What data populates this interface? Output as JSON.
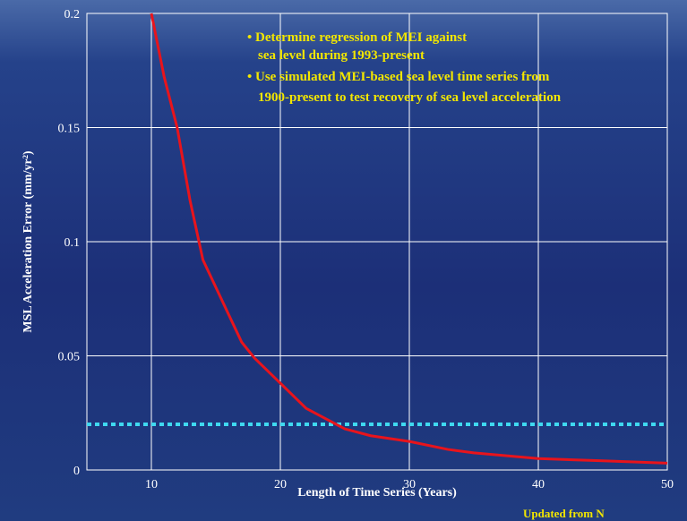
{
  "chart_data": {
    "type": "line",
    "xlabel": "Length of Time Series (Years)",
    "ylabel": "MSL Acceleration Error (mm/yr²)",
    "annotations": [
      "• Determine regression of MEI against",
      "sea level during 1993-present",
      "• Use simulated MEI-based sea level time series from",
      "1900-present to test recovery of sea level acceleration"
    ],
    "footnote": "Updated from N",
    "x": [
      10,
      11,
      12,
      13,
      14,
      15,
      16,
      17,
      18,
      20,
      22,
      24,
      25,
      27,
      30,
      33,
      35,
      40,
      45,
      50
    ],
    "series": [
      {
        "name": "Acceleration error",
        "color": "#e8141c",
        "values": [
          0.2,
          0.172,
          0.15,
          0.118,
          0.092,
          0.08,
          0.068,
          0.056,
          0.049,
          0.038,
          0.027,
          0.021,
          0.018,
          0.015,
          0.0125,
          0.009,
          0.0075,
          0.005,
          0.004,
          0.003
        ]
      }
    ],
    "hline": {
      "value": 0.02,
      "color": "#3fd9f0"
    },
    "xlim": [
      5,
      50
    ],
    "xticks": [
      10,
      20,
      30,
      40,
      50
    ],
    "ylim": [
      0,
      0.2
    ],
    "yticks": [
      0,
      0.05,
      0.1,
      0.15,
      0.2
    ],
    "grid": true
  }
}
